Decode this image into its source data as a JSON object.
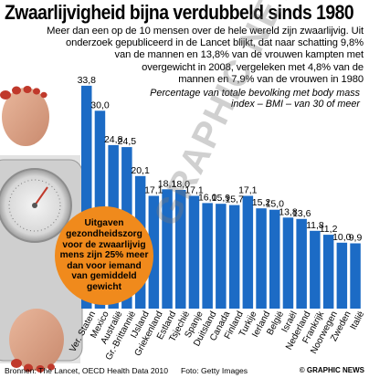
{
  "title": "Zwaarlijvigheid bijna verdubbeld sinds 1980",
  "lead": [
    "Meer dan een op de 10 mensen over de hele wereld zijn zwaarlijvig. Uit",
    "onderzoek gepubliceerd in de Lancet blijkt, dat naar schatting 9,8%",
    "van de mannen en 13,8% van de vrouwen kampten met",
    "overgewicht in 2008, vergeleken met 4,8% van de",
    "mannen en 7,9% van de vrouwen in 1980"
  ],
  "subtitle": "Percentage van totale bevolking met body mass index – BMI – van 30 of meer",
  "badge": "Uitgaven gezondheidszorg voor de zwaarlijvig mens zijn 25% meer dan voor iemand van gemiddeld gewicht",
  "footer": {
    "source": "Bronnen: The Lancet, OECD Health Data 2010",
    "photo": "Foto: Getty Images",
    "credit": "© GRAPHIC NEWS"
  },
  "watermark": "GRAPHIC NEWS",
  "colors": {
    "bar": "#1c6bc5",
    "badge": "#f08a1c",
    "floor": "#dcdcdc"
  },
  "chart_data": {
    "type": "bar",
    "categories": [
      "Ver. Staten",
      "Mexico",
      "Australië",
      "Gr.-Brittannië",
      "IJsland",
      "Griekenland",
      "Estland",
      "Tsjechië",
      "Spanje",
      "Duitsland",
      "Canada",
      "Finland",
      "Turkije",
      "Ierland",
      "België",
      "Israël",
      "Nederland",
      "Frankrijk",
      "Noorwegen",
      "Zweden",
      "Italië"
    ],
    "values": [
      33.8,
      30.0,
      24.8,
      24.5,
      20.1,
      17.1,
      18.1,
      18.0,
      17.1,
      16.0,
      15.9,
      15.7,
      17.1,
      15.2,
      15.0,
      13.8,
      13.6,
      11.8,
      11.2,
      10.0,
      9.9
    ],
    "labels": [
      "33,8",
      "30,0",
      "24,8",
      "24,5",
      "20,1",
      "17,1",
      "18,1",
      "18,0",
      "17,1",
      "16,0",
      "15,9",
      "15,7",
      "17,1",
      "15,2",
      "15,0",
      "13,8",
      "13,6",
      "11,8",
      "11,2",
      "10,0",
      "9,9"
    ],
    "ylabel": "Percentage van totale bevolking met body mass index – BMI – van 30 of meer",
    "ylim": [
      0,
      36
    ],
    "grid": false,
    "legend": "none"
  }
}
